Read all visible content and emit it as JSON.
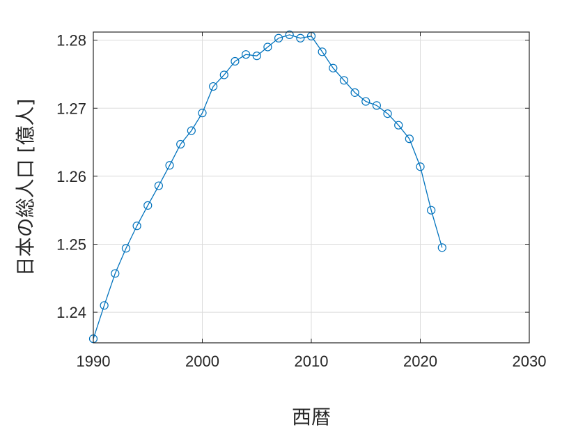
{
  "chart_data": {
    "type": "line",
    "xlabel": "西暦",
    "ylabel": "日本の総人口 [億人]",
    "xlim": [
      1990,
      2030
    ],
    "ylim": [
      1.2355,
      1.2812
    ],
    "xticks": [
      1990,
      2000,
      2010,
      2020,
      2030
    ],
    "yticks": [
      1.24,
      1.25,
      1.26,
      1.27,
      1.28
    ],
    "xtick_labels": [
      "1990",
      "2000",
      "2010",
      "2020",
      "2030"
    ],
    "ytick_labels": [
      "1.24",
      "1.25",
      "1.26",
      "1.27",
      "1.28"
    ],
    "grid": true,
    "marker": "circle",
    "line_color": "#0072bd",
    "x": [
      1990,
      1991,
      1992,
      1993,
      1994,
      1995,
      1996,
      1997,
      1998,
      1999,
      2000,
      2001,
      2002,
      2003,
      2004,
      2005,
      2006,
      2007,
      2008,
      2009,
      2010,
      2011,
      2012,
      2013,
      2014,
      2015,
      2016,
      2017,
      2018,
      2019,
      2020,
      2021,
      2022
    ],
    "y": [
      1.2361,
      1.241,
      1.2457,
      1.2494,
      1.2527,
      1.2557,
      1.2586,
      1.2616,
      1.2647,
      1.2667,
      1.2693,
      1.2732,
      1.2749,
      1.2769,
      1.2779,
      1.2777,
      1.279,
      1.2803,
      1.2808,
      1.2803,
      1.2806,
      1.2783,
      1.2759,
      1.2741,
      1.2723,
      1.271,
      1.2704,
      1.2692,
      1.2675,
      1.2655,
      1.2614,
      1.255,
      1.2495
    ]
  }
}
